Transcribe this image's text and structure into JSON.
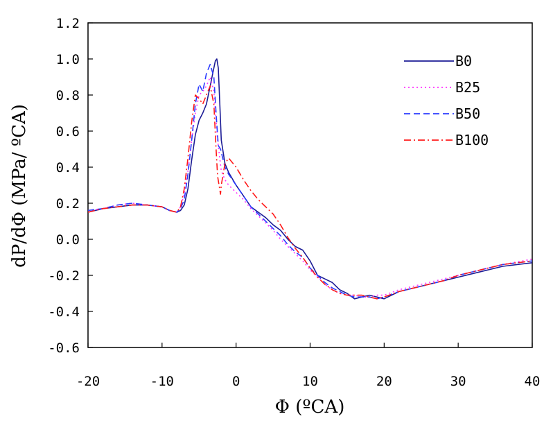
{
  "chart_data": {
    "type": "line",
    "xlabel": "Φ (ºCA)",
    "ylabel": "dP/dΦ (MPa/ ºCA)",
    "xlim": [
      -20,
      40
    ],
    "ylim": [
      -0.6,
      1.2
    ],
    "xticks": [
      -20,
      -10,
      0,
      10,
      20,
      30,
      40
    ],
    "yticks": [
      1.2,
      1.0,
      0.8,
      0.6,
      0.4,
      0.2,
      0.0,
      -0.2,
      -0.4,
      -0.6
    ],
    "xtick_labels": [
      "-20",
      "-10",
      "0",
      "10",
      "20",
      "30",
      "40"
    ],
    "ytick_labels": [
      "1.2",
      "1.0",
      "0.8",
      "0.6",
      "0.4",
      "0.2",
      "0.0",
      "-0.2",
      "-0.4",
      "-0.6"
    ],
    "grid": false,
    "legend_position": "top-right",
    "series": [
      {
        "name": "B0",
        "color": "#1c1c96",
        "dash": "solid",
        "x": [
          -20,
          -18,
          -16,
          -14,
          -12,
          -10,
          -9,
          -8,
          -7.5,
          -7,
          -6.5,
          -6,
          -5.5,
          -5,
          -4.5,
          -4,
          -3.5,
          -3,
          -2.8,
          -2.6,
          -2.4,
          -2.2,
          -2,
          -1.5,
          -1,
          0,
          1,
          2,
          3,
          4,
          5,
          6,
          7,
          8,
          9,
          10,
          11,
          12,
          13,
          14,
          15,
          16,
          17,
          18,
          19,
          20,
          22,
          25,
          28,
          30,
          33,
          36,
          40
        ],
        "y": [
          0.15,
          0.17,
          0.18,
          0.19,
          0.19,
          0.18,
          0.16,
          0.15,
          0.16,
          0.19,
          0.28,
          0.44,
          0.58,
          0.66,
          0.7,
          0.75,
          0.85,
          0.95,
          0.99,
          1.0,
          0.95,
          0.75,
          0.55,
          0.42,
          0.37,
          0.3,
          0.24,
          0.18,
          0.15,
          0.12,
          0.08,
          0.05,
          0.0,
          -0.04,
          -0.06,
          -0.12,
          -0.2,
          -0.22,
          -0.24,
          -0.28,
          -0.3,
          -0.33,
          -0.32,
          -0.31,
          -0.32,
          -0.33,
          -0.29,
          -0.26,
          -0.23,
          -0.21,
          -0.18,
          -0.15,
          -0.13
        ]
      },
      {
        "name": "B25",
        "color": "#ff33ff",
        "dash": "dotted",
        "x": [
          -20,
          -18,
          -16,
          -14,
          -12,
          -10,
          -9,
          -8,
          -7.5,
          -7,
          -6.5,
          -6,
          -5.5,
          -5,
          -4.5,
          -4,
          -3.5,
          -3,
          -2.5,
          -2,
          -1.5,
          -1,
          0,
          1,
          2,
          3,
          4,
          5,
          6,
          7,
          8,
          9,
          10,
          11,
          12,
          13,
          14,
          15,
          16,
          17,
          18,
          19,
          20,
          22,
          25,
          28,
          30,
          33,
          36,
          40
        ],
        "y": [
          0.16,
          0.17,
          0.19,
          0.2,
          0.19,
          0.18,
          0.16,
          0.15,
          0.18,
          0.25,
          0.38,
          0.55,
          0.7,
          0.8,
          0.82,
          0.85,
          0.9,
          0.82,
          0.55,
          0.38,
          0.33,
          0.3,
          0.26,
          0.22,
          0.17,
          0.13,
          0.09,
          0.05,
          0.0,
          -0.04,
          -0.08,
          -0.12,
          -0.17,
          -0.21,
          -0.25,
          -0.28,
          -0.3,
          -0.31,
          -0.31,
          -0.32,
          -0.32,
          -0.31,
          -0.31,
          -0.28,
          -0.25,
          -0.22,
          -0.2,
          -0.17,
          -0.14,
          -0.11
        ]
      },
      {
        "name": "B50",
        "color": "#2b3bff",
        "dash": "dashed",
        "x": [
          -20,
          -18,
          -16,
          -14,
          -12,
          -10,
          -9,
          -8,
          -7.5,
          -7,
          -6.5,
          -6,
          -5.5,
          -5,
          -4.5,
          -4,
          -3.5,
          -3,
          -2.7,
          -2.4,
          -2.1,
          -1.8,
          -1.5,
          -1,
          0,
          1,
          2,
          3,
          4,
          5,
          6,
          7,
          8,
          9,
          10,
          11,
          12,
          13,
          14,
          15,
          16,
          17,
          18,
          19,
          20,
          22,
          25,
          28,
          30,
          33,
          36,
          40
        ],
        "y": [
          0.16,
          0.17,
          0.19,
          0.2,
          0.19,
          0.18,
          0.16,
          0.15,
          0.17,
          0.22,
          0.36,
          0.55,
          0.75,
          0.86,
          0.82,
          0.92,
          0.97,
          0.9,
          0.7,
          0.52,
          0.5,
          0.45,
          0.4,
          0.36,
          0.3,
          0.24,
          0.18,
          0.14,
          0.1,
          0.06,
          0.02,
          -0.03,
          -0.07,
          -0.1,
          -0.16,
          -0.2,
          -0.24,
          -0.27,
          -0.29,
          -0.31,
          -0.32,
          -0.32,
          -0.32,
          -0.33,
          -0.32,
          -0.29,
          -0.26,
          -0.23,
          -0.2,
          -0.17,
          -0.14,
          -0.12
        ]
      },
      {
        "name": "B100",
        "color": "#ff1a1a",
        "dash": "dashdot",
        "x": [
          -20,
          -18,
          -16,
          -14,
          -12,
          -10,
          -9,
          -8,
          -7.5,
          -7,
          -6.5,
          -6,
          -5.5,
          -5,
          -4.5,
          -4,
          -3.5,
          -3,
          -2.7,
          -2.5,
          -2.3,
          -2.1,
          -2,
          -1.5,
          -1,
          0,
          1,
          2,
          3,
          4,
          5,
          6,
          7,
          8,
          9,
          10,
          11,
          12,
          13,
          14,
          15,
          16,
          17,
          18,
          19,
          20,
          22,
          25,
          28,
          30,
          33,
          36,
          40
        ],
        "y": [
          0.15,
          0.17,
          0.18,
          0.19,
          0.19,
          0.18,
          0.16,
          0.15,
          0.18,
          0.28,
          0.45,
          0.65,
          0.8,
          0.78,
          0.75,
          0.8,
          0.85,
          0.75,
          0.5,
          0.35,
          0.3,
          0.25,
          0.3,
          0.42,
          0.45,
          0.4,
          0.33,
          0.27,
          0.22,
          0.18,
          0.14,
          0.08,
          0.01,
          -0.05,
          -0.1,
          -0.16,
          -0.21,
          -0.25,
          -0.28,
          -0.3,
          -0.31,
          -0.31,
          -0.31,
          -0.32,
          -0.33,
          -0.32,
          -0.29,
          -0.26,
          -0.23,
          -0.2,
          -0.17,
          -0.14,
          -0.12
        ]
      }
    ]
  }
}
